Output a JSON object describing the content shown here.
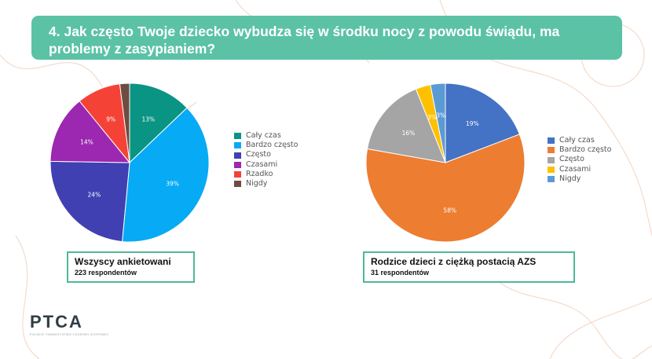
{
  "header": {
    "question": "4. Jak często Twoje dziecko wybudza się w środku nocy z powodu świądu, ma problemy z zasypianiem?"
  },
  "logo": {
    "text": "PTCA",
    "tagline": "POLSKIE TOWARZYSTWO CHOROBY ATOPOWEJ"
  },
  "chart_data": [
    {
      "type": "pie",
      "categories": [
        "Cały czas",
        "Bardzo często",
        "Często",
        "Czasami",
        "Rzadko",
        "Nigdy"
      ],
      "values": [
        13,
        39,
        24,
        14,
        9,
        2
      ],
      "labels": [
        "13%",
        "39%",
        "24%",
        "14%",
        "9%",
        ""
      ],
      "colors": [
        "#0a9484",
        "#06aaf5",
        "#4040b2",
        "#9c27b0",
        "#f44336",
        "#6d4c41"
      ],
      "label_color": "#ffffff",
      "legend_position": "right",
      "caption_title": "Wszyscy ankietowani",
      "caption_subtitle": "223 respondentów"
    },
    {
      "type": "pie",
      "categories": [
        "Cały czas",
        "Bardzo często",
        "Często",
        "Czasami",
        "Nigdy"
      ],
      "values": [
        19,
        58,
        16,
        3,
        3
      ],
      "labels": [
        "19%",
        "58%",
        "16%",
        "3%",
        "3%"
      ],
      "colors": [
        "#4472c4",
        "#ed7d31",
        "#a5a5a5",
        "#ffc000",
        "#5b9bd5"
      ],
      "label_color": "#ffffff",
      "legend_position": "right",
      "caption_title": "Rodzice dzieci z ciężką postacią AZS",
      "caption_subtitle": "31 respondentów"
    }
  ]
}
